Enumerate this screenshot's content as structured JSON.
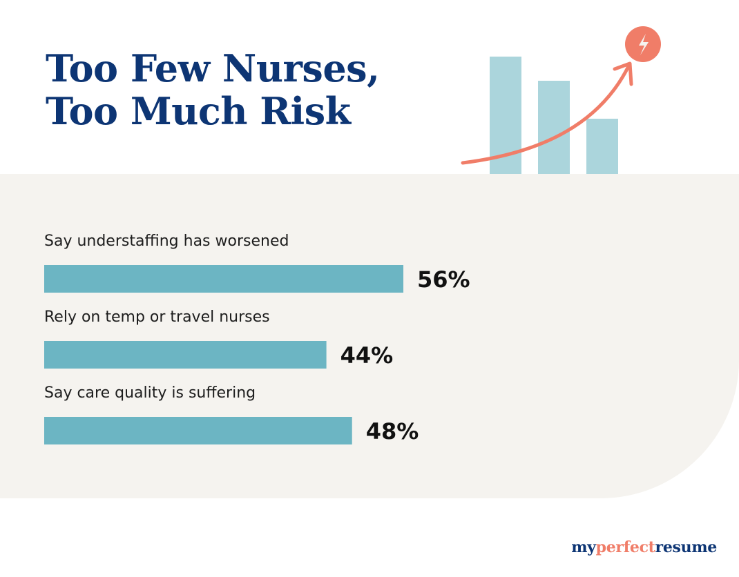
{
  "title": {
    "line1": "Too Few Nurses,",
    "line2": "Too Much Risk"
  },
  "brand": {
    "part1": "my",
    "part2": "perfect",
    "part3": "resume"
  },
  "colors": {
    "title": "#0d3574",
    "bar": "#6cb5c3",
    "panel": "#f5f3ef",
    "illustration_bar": "#abd5dc",
    "accent": "#f07d68"
  },
  "illustration": {
    "icon": "lightning-bolt-icon",
    "arrow": "trend-up-arrow-icon"
  },
  "chart_data": {
    "type": "bar",
    "orientation": "horizontal",
    "categories": [
      "Say understaffing has worsened",
      "Rely on temp or travel nurses",
      "Say care quality is suffering"
    ],
    "values": [
      56,
      44,
      48
    ],
    "value_labels": [
      "56%",
      "44%",
      "48%"
    ],
    "unit": "%",
    "xlim": [
      0,
      100
    ],
    "grid": false,
    "legend": "none"
  }
}
